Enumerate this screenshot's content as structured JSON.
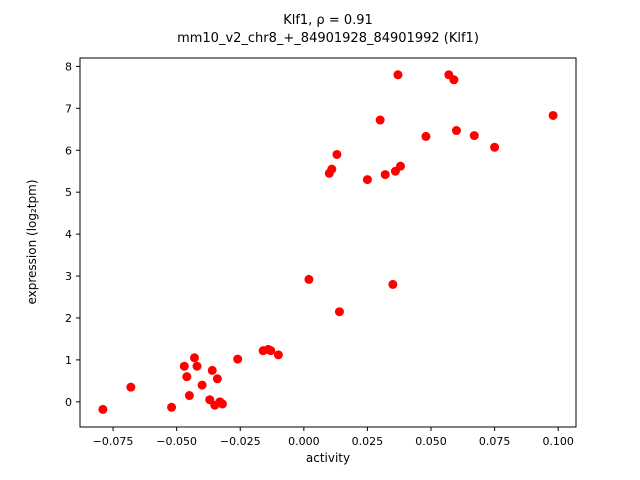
{
  "chart_data": {
    "type": "scatter",
    "title": "Klf1, ρ = 0.91",
    "subtitle": "mm10_v2_chr8_+_84901928_84901992 (Klf1)",
    "xlabel": "activity",
    "ylabel": "expression (log₂tpm)",
    "xlim": [
      -0.088,
      0.107
    ],
    "ylim": [
      -0.6,
      8.2
    ],
    "xticks": [
      -0.075,
      -0.05,
      -0.025,
      0.0,
      0.025,
      0.05,
      0.075,
      0.1
    ],
    "yticks": [
      0,
      1,
      2,
      3,
      4,
      5,
      6,
      7,
      8
    ],
    "marker_color": "#ff0000",
    "grid": false,
    "legend": "none",
    "points": [
      [
        -0.079,
        -0.18
      ],
      [
        -0.068,
        0.35
      ],
      [
        -0.052,
        -0.13
      ],
      [
        -0.047,
        0.85
      ],
      [
        -0.046,
        0.6
      ],
      [
        -0.045,
        0.15
      ],
      [
        -0.043,
        1.05
      ],
      [
        -0.042,
        0.85
      ],
      [
        -0.04,
        0.4
      ],
      [
        -0.037,
        0.05
      ],
      [
        -0.036,
        0.75
      ],
      [
        -0.035,
        -0.08
      ],
      [
        -0.034,
        0.55
      ],
      [
        -0.033,
        0.0
      ],
      [
        -0.032,
        -0.05
      ],
      [
        -0.026,
        1.02
      ],
      [
        -0.016,
        1.22
      ],
      [
        -0.014,
        1.25
      ],
      [
        -0.013,
        1.22
      ],
      [
        -0.01,
        1.12
      ],
      [
        0.002,
        2.92
      ],
      [
        0.01,
        5.45
      ],
      [
        0.011,
        5.55
      ],
      [
        0.013,
        5.9
      ],
      [
        0.014,
        2.15
      ],
      [
        0.025,
        5.3
      ],
      [
        0.03,
        6.72
      ],
      [
        0.032,
        5.42
      ],
      [
        0.035,
        2.8
      ],
      [
        0.036,
        5.5
      ],
      [
        0.037,
        7.8
      ],
      [
        0.038,
        5.62
      ],
      [
        0.048,
        6.33
      ],
      [
        0.057,
        7.8
      ],
      [
        0.059,
        7.68
      ],
      [
        0.06,
        6.47
      ],
      [
        0.067,
        6.35
      ],
      [
        0.075,
        6.07
      ],
      [
        0.098,
        6.83
      ]
    ]
  }
}
